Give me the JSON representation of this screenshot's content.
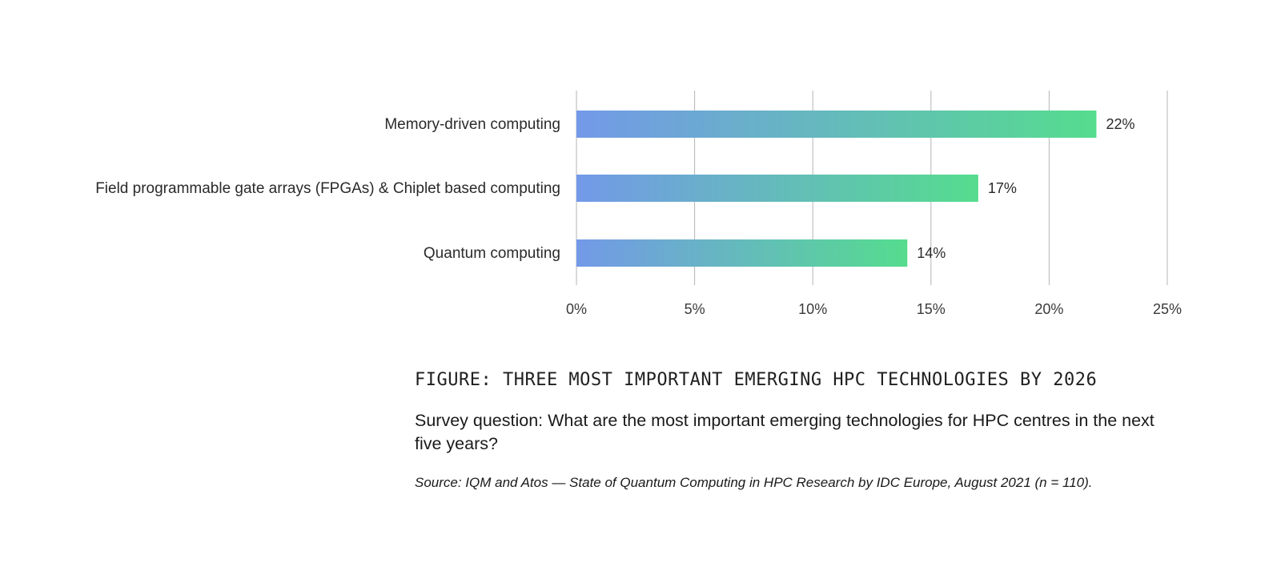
{
  "chart_data": {
    "type": "bar",
    "orientation": "horizontal",
    "categories": [
      "Memory-driven computing",
      "Field programmable gate arrays (FPGAs) & Chiplet based computing",
      "Quantum computing"
    ],
    "values": [
      22,
      17,
      14
    ],
    "value_labels": [
      "22%",
      "17%",
      "14%"
    ],
    "xlim": [
      0,
      25
    ],
    "x_ticks": [
      0,
      5,
      10,
      15,
      20,
      25
    ],
    "x_tick_labels": [
      "0%",
      "5%",
      "10%",
      "15%",
      "20%",
      "25%"
    ],
    "grid": true,
    "legend": "none",
    "colors": {
      "bar_gradient_start": "#7399e8",
      "bar_gradient_end": "#55dc8e",
      "gridline": "#b5b5b5"
    }
  },
  "caption": {
    "title": "FIGURE: THREE MOST IMPORTANT EMERGING HPC TECHNOLOGIES BY 2026",
    "question": "Survey question: What are the most important emerging technologies for HPC centres in the next five years?",
    "source": "Source: IQM and Atos — State of Quantum Computing in HPC Research by IDC Europe, August 2021 (n = 110)."
  }
}
